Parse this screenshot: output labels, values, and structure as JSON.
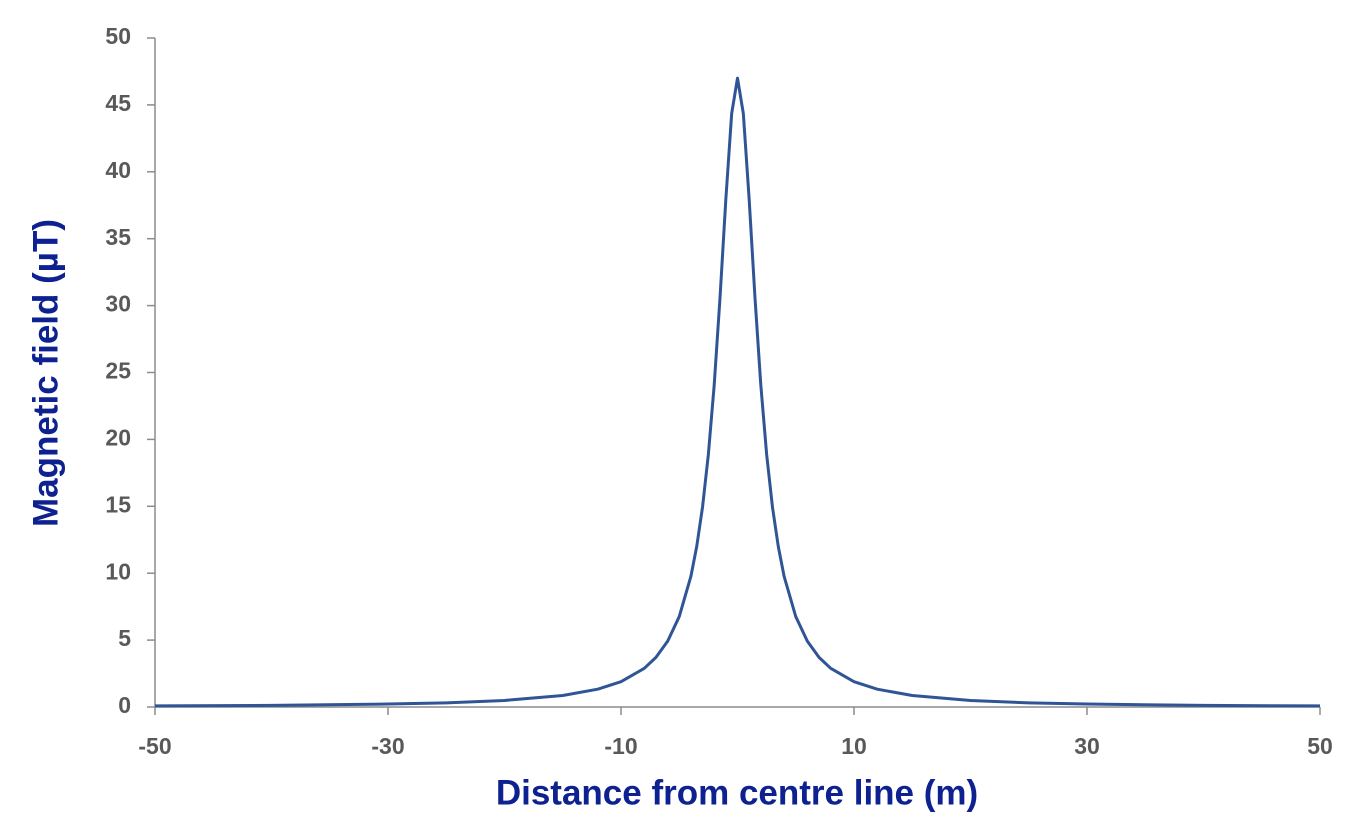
{
  "chart_data": {
    "type": "line",
    "x_label": "Distance from centre line (m)",
    "y_label": "Magnetic field (µT)",
    "x": [
      -50,
      -40,
      -30,
      -25,
      -20,
      -15,
      -12,
      -10,
      -8,
      -7,
      -6,
      -5,
      -4,
      -3.5,
      -3,
      -2.5,
      -2,
      -1.5,
      -1,
      -0.5,
      0,
      0.5,
      1,
      1.5,
      2,
      2.5,
      3,
      3.5,
      4,
      5,
      6,
      7,
      8,
      10,
      12,
      15,
      20,
      25,
      30,
      40,
      50
    ],
    "series": [
      {
        "color": "#2f5597",
        "values": [
          0.08,
          0.12,
          0.22,
          0.31,
          0.49,
          0.86,
          1.33,
          1.89,
          2.89,
          3.71,
          4.91,
          6.76,
          9.77,
          12.0,
          14.95,
          18.89,
          24.07,
          30.6,
          37.96,
          44.36,
          47,
          44.36,
          37.96,
          30.6,
          24.07,
          18.89,
          14.95,
          12.0,
          9.77,
          6.76,
          4.91,
          3.71,
          2.89,
          1.89,
          1.33,
          0.86,
          0.49,
          0.31,
          0.22,
          0.12,
          0.08
        ]
      }
    ],
    "xlim": [
      -50,
      50
    ],
    "xticks": [
      -50,
      -30,
      -10,
      10,
      30,
      50
    ],
    "ylim": [
      0,
      50
    ],
    "yticks": [
      0,
      5,
      10,
      15,
      20,
      25,
      30,
      35,
      40,
      45,
      50
    ],
    "grid": false
  }
}
